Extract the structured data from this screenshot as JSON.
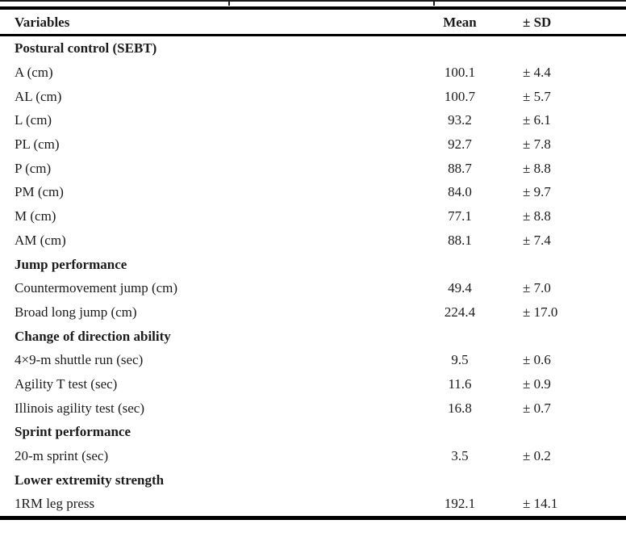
{
  "colors": {
    "background": "#ffffff",
    "text": "#1b1b1b",
    "rule": "#000000"
  },
  "table": {
    "columns": {
      "variable": "Variables",
      "mean": "Mean",
      "sd": "± SD"
    },
    "rows": [
      {
        "type": "section",
        "label": "Postural control (SEBT)",
        "mean": "",
        "sd": ""
      },
      {
        "type": "data",
        "label": "A (cm)",
        "mean": "100.1",
        "sd": "± 4.4"
      },
      {
        "type": "data",
        "label": "AL (cm)",
        "mean": "100.7",
        "sd": "± 5.7"
      },
      {
        "type": "data",
        "label": "L (cm)",
        "mean": "93.2",
        "sd": "± 6.1"
      },
      {
        "type": "data",
        "label": "PL (cm)",
        "mean": "92.7",
        "sd": "± 7.8"
      },
      {
        "type": "data",
        "label": "P (cm)",
        "mean": "88.7",
        "sd": "± 8.8"
      },
      {
        "type": "data",
        "label": "PM (cm)",
        "mean": "84.0",
        "sd": "± 9.7"
      },
      {
        "type": "data",
        "label": "M (cm)",
        "mean": "77.1",
        "sd": "± 8.8"
      },
      {
        "type": "data",
        "label": "AM (cm)",
        "mean": "88.1",
        "sd": "± 7.4"
      },
      {
        "type": "section",
        "label": "Jump performance",
        "mean": "",
        "sd": ""
      },
      {
        "type": "data",
        "label": "Countermovement jump (cm)",
        "mean": "49.4",
        "sd": "± 7.0"
      },
      {
        "type": "data",
        "label": "Broad long jump (cm)",
        "mean": "224.4",
        "sd": "± 17.0"
      },
      {
        "type": "section",
        "label": "Change of direction ability",
        "mean": "",
        "sd": ""
      },
      {
        "type": "data",
        "label": "4×9-m shuttle run (sec)",
        "mean": "9.5",
        "sd": "± 0.6"
      },
      {
        "type": "data",
        "label": "Agility T test (sec)",
        "mean": "11.6",
        "sd": "± 0.9"
      },
      {
        "type": "data",
        "label": "Illinois agility test (sec)",
        "mean": "16.8",
        "sd": "± 0.7"
      },
      {
        "type": "section",
        "label": "Sprint performance",
        "mean": "",
        "sd": ""
      },
      {
        "type": "data",
        "label": "20-m sprint (sec)",
        "mean": "3.5",
        "sd": "± 0.2"
      },
      {
        "type": "section",
        "label": "Lower extremity strength",
        "mean": "",
        "sd": ""
      },
      {
        "type": "data",
        "label": "1RM leg press",
        "mean": "192.1",
        "sd": "± 14.1"
      }
    ]
  }
}
